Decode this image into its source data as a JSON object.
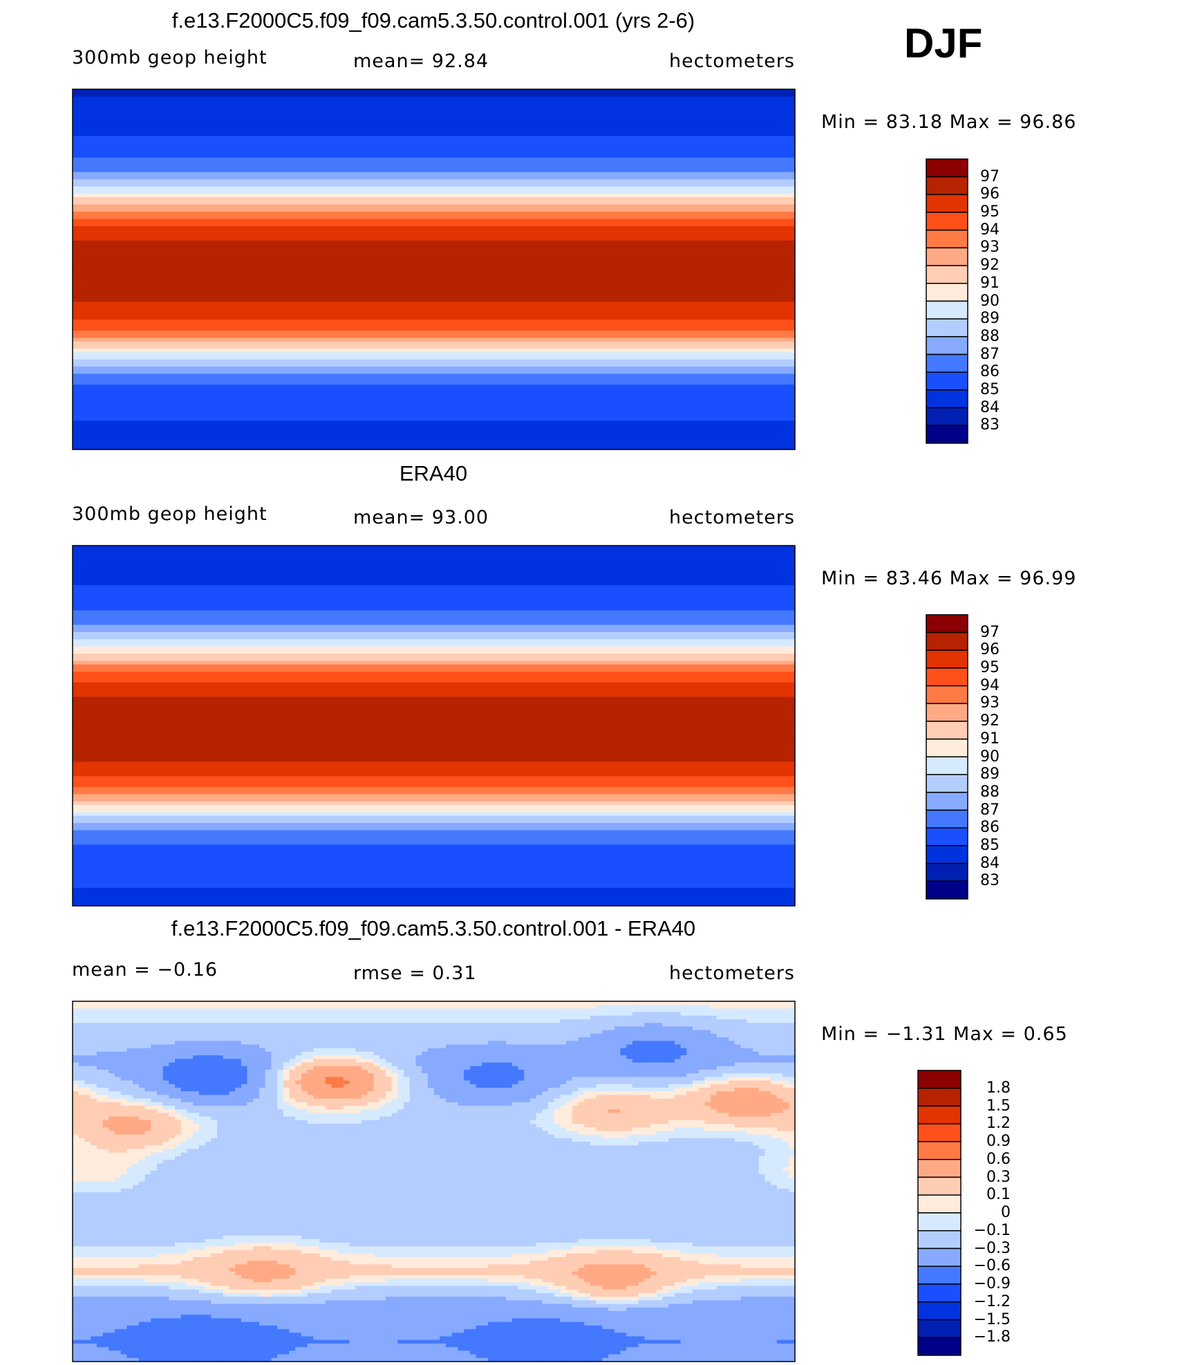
{
  "season": "DJF",
  "colors_abs": [
    "#8b0000",
    "#b52300",
    "#e23400",
    "#ff5019",
    "#ff7a45",
    "#ffaa85",
    "#ffcdb4",
    "#ffecdc",
    "#d6eaff",
    "#b4cdff",
    "#87aaff",
    "#4479ff",
    "#1a4fff",
    "#0033e0",
    "#001fb3",
    "#000088"
  ],
  "chart_data": [
    {
      "type": "heatmap",
      "title": "f.e13.F2000C5.f09_f09.cam5.3.50.control.001 (yrs 2-6)",
      "left": "300mb geop height",
      "center": "mean=   92.84",
      "right": "hectometers",
      "minmax": "Min =   83.18  Max =   96.86",
      "levels": [
        "97",
        "96",
        "95",
        "94",
        "93",
        "92",
        "91",
        "90",
        "89",
        "88",
        "87",
        "86",
        "85",
        "84",
        "83"
      ],
      "level_values": [
        97,
        96,
        95,
        94,
        93,
        92,
        91,
        90,
        89,
        88,
        87,
        86,
        85,
        84,
        83
      ],
      "zonal_profile": {
        "lat": [
          90,
          75,
          60,
          50,
          40,
          30,
          20,
          10,
          0,
          -10,
          -20,
          -30,
          -40,
          -50,
          -60,
          -75,
          -90
        ],
        "value": [
          83.8,
          84.5,
          85.6,
          87.2,
          89.8,
          93.2,
          95.6,
          96.3,
          96.4,
          96.3,
          95.8,
          94.2,
          90.8,
          87.3,
          85.6,
          85.0,
          84.6
        ]
      },
      "anomalies": []
    },
    {
      "type": "heatmap",
      "title": "ERA40",
      "left": "300mb geop height",
      "center": "mean=   93.00",
      "right": "hectometers",
      "minmax": "Min =   83.46  Max =   96.99",
      "levels": [
        "97",
        "96",
        "95",
        "94",
        "93",
        "92",
        "91",
        "90",
        "89",
        "88",
        "87",
        "86",
        "85",
        "84",
        "83"
      ],
      "level_values": [
        97,
        96,
        95,
        94,
        93,
        92,
        91,
        90,
        89,
        88,
        87,
        86,
        85,
        84,
        83
      ],
      "zonal_profile": {
        "lat": [
          90,
          75,
          60,
          50,
          40,
          30,
          20,
          10,
          0,
          -10,
          -20,
          -30,
          -40,
          -50,
          -60,
          -75,
          -90
        ],
        "value": [
          84.0,
          84.8,
          85.9,
          87.5,
          90.2,
          93.4,
          95.7,
          96.4,
          96.5,
          96.4,
          95.9,
          94.4,
          91.0,
          87.5,
          85.8,
          85.2,
          84.7
        ]
      },
      "anomalies": []
    },
    {
      "type": "heatmap",
      "title": "f.e13.F2000C5.f09_f09.cam5.3.50.control.001 - ERA40",
      "left": "mean =   −0.16",
      "center": "rmse =    0.31",
      "right": "hectometers",
      "minmax": "Min =   −1.31  Max =    0.65",
      "levels": [
        "1.8",
        "1.5",
        "1.2",
        "0.9",
        "0.6",
        "0.3",
        "0.1",
        "0",
        "−0.1",
        "−0.3",
        "−0.6",
        "−0.9",
        "−1.2",
        "−1.5",
        "−1.8"
      ],
      "level_values": [
        1.8,
        1.5,
        1.2,
        0.9,
        0.6,
        0.3,
        0.1,
        0,
        -0.1,
        -0.3,
        -0.6,
        -0.9,
        -1.2,
        -1.5,
        -1.8
      ],
      "zonal_profile": {
        "lat": [
          90,
          75,
          60,
          45,
          30,
          15,
          0,
          -15,
          -30,
          -45,
          -55,
          -65,
          -80,
          -90
        ],
        "value": [
          0.05,
          -0.15,
          -0.35,
          -0.2,
          -0.15,
          -0.2,
          -0.25,
          -0.2,
          -0.15,
          0.15,
          -0.2,
          -0.5,
          -0.6,
          -0.5
        ]
      },
      "anomalies": [
        {
          "lon": 100,
          "lat": 52,
          "value": -0.9
        },
        {
          "lon": 160,
          "lat": 50,
          "value": 0.65
        },
        {
          "lon": 5,
          "lat": 40,
          "value": 0.45
        },
        {
          "lon": 60,
          "lat": 28,
          "value": 0.35
        },
        {
          "lon": 300,
          "lat": 35,
          "value": 0.3
        },
        {
          "lon": 240,
          "lat": 52,
          "value": -0.7
        },
        {
          "lon": 320,
          "lat": 65,
          "value": -0.7
        },
        {
          "lon": 125,
          "lat": -45,
          "value": 0.35
        },
        {
          "lon": 300,
          "lat": -48,
          "value": 0.4
        },
        {
          "lon": 95,
          "lat": -82,
          "value": -0.9
        },
        {
          "lon": 265,
          "lat": -82,
          "value": -0.8
        },
        {
          "lon": 40,
          "lat": 5,
          "value": 0.05
        }
      ]
    }
  ]
}
